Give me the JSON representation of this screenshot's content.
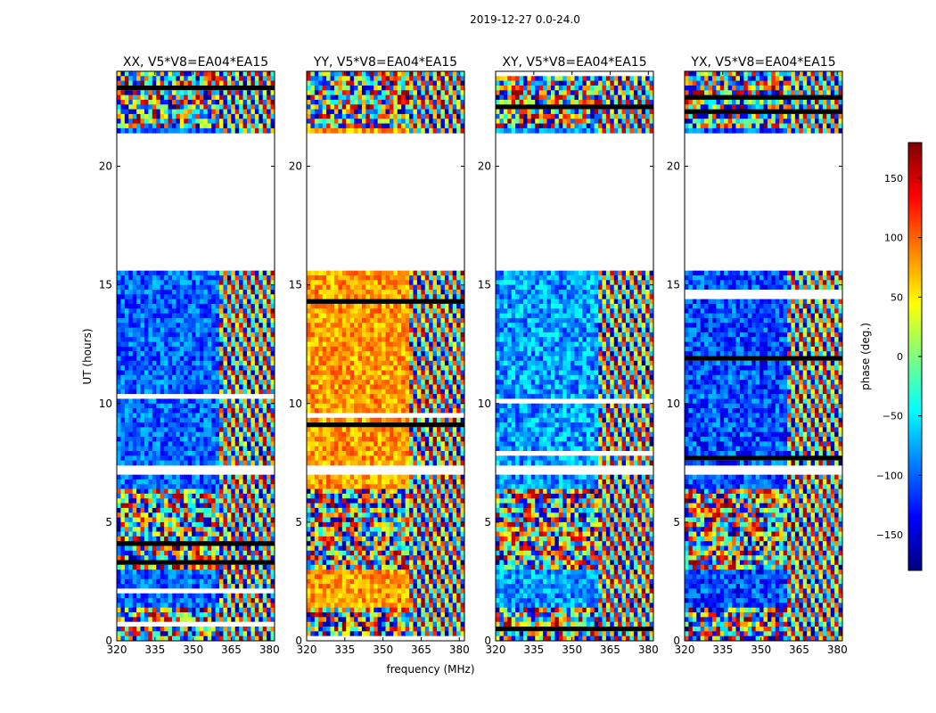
{
  "chart_data": {
    "type": "heatmap",
    "suptitle": "2019-12-27 0.0-24.0",
    "xlabel": "frequency (MHz)",
    "ylabel": "UT (hours)",
    "xlim": [
      320,
      382
    ],
    "ylim": [
      0,
      24
    ],
    "xticks": [
      320,
      335,
      350,
      365,
      380
    ],
    "yticks": [
      0,
      5,
      10,
      15,
      20
    ],
    "colorbar": {
      "label": "phase (deg.)",
      "range": [
        -180,
        180
      ],
      "ticks": [
        150,
        100,
        50,
        0,
        -50,
        -100,
        -150
      ],
      "tick_labels": [
        "150",
        "100",
        "50",
        "0",
        "−50",
        "−100",
        "−150"
      ],
      "colormap": "jet"
    },
    "panels": [
      {
        "title": "XX, V5*V8=EA04*EA15",
        "mean_phase_low_band": -100,
        "phase_noise": 40
      },
      {
        "title": "YY, V5*V8=EA04*EA15",
        "mean_phase_low_band": 80,
        "phase_noise": 35
      },
      {
        "title": "XY, V5*V8=EA04*EA15",
        "mean_phase_low_band": -80,
        "phase_noise": 45
      },
      {
        "title": "YX, V5*V8=EA04*EA15",
        "mean_phase_low_band": -110,
        "phase_noise": 45
      }
    ],
    "wrapping_fringe_start_mhz": 361,
    "data_gap_hours": [
      [
        20.5,
        21.5
      ],
      [
        15.6,
        20.5
      ],
      [
        7.0,
        7.4
      ]
    ]
  }
}
